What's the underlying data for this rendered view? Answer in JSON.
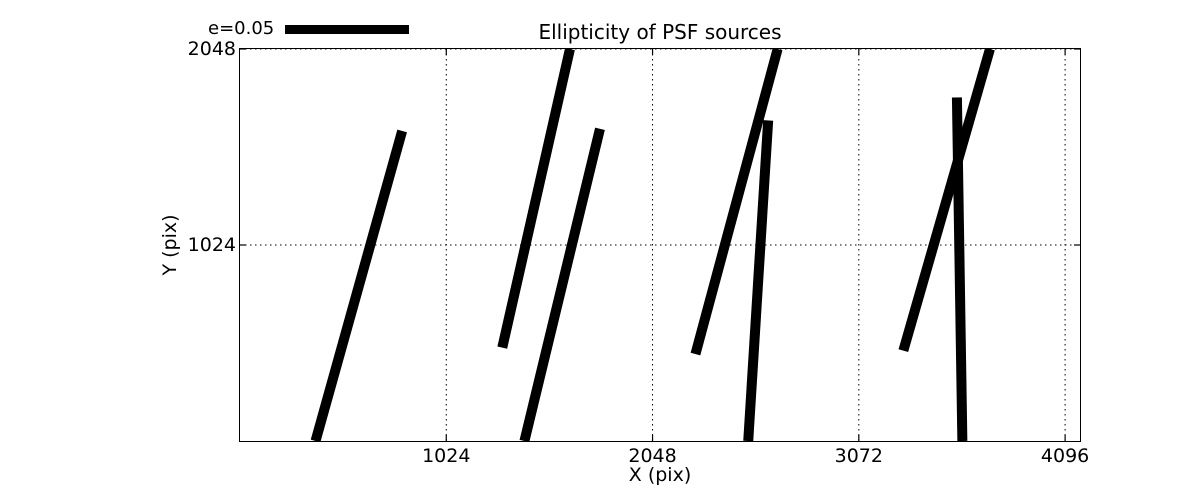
{
  "chart_data": {
    "type": "line",
    "subtype": "ellipticity-whisker-plot",
    "title": "Ellipticity of PSF sources",
    "xlabel": "X (pix)",
    "ylabel": "Y (pix)",
    "legend": {
      "label": "e=0.05",
      "swatch": "thick-black-line",
      "position": "upper-left-outside"
    },
    "axes": {
      "xlim": [
        0,
        4170
      ],
      "ylim": [
        0,
        2048
      ],
      "x_ticks": [
        {
          "value": 1024,
          "label": "1024"
        },
        {
          "value": 2048,
          "label": "2048"
        },
        {
          "value": 3072,
          "label": "3072"
        },
        {
          "value": 4096,
          "label": "4096"
        }
      ],
      "y_ticks": [
        {
          "value": 1024,
          "label": "1024"
        },
        {
          "value": 2048,
          "label": "2048"
        }
      ],
      "grid": "dotted"
    },
    "segments": [
      {
        "x1": 375,
        "y1": 0,
        "x2": 805,
        "y2": 1620
      },
      {
        "x1": 1302,
        "y1": 488,
        "x2": 1638,
        "y2": 2048
      },
      {
        "x1": 1412,
        "y1": 0,
        "x2": 1787,
        "y2": 1631
      },
      {
        "x1": 2261,
        "y1": 454,
        "x2": 2669,
        "y2": 2048
      },
      {
        "x1": 2523,
        "y1": 0,
        "x2": 2622,
        "y2": 1675
      },
      {
        "x1": 3293,
        "y1": 472,
        "x2": 3723,
        "y2": 2048
      },
      {
        "x1": 3586,
        "y1": 0,
        "x2": 3559,
        "y2": 1795
      }
    ]
  },
  "colors": {
    "foreground": "#000000",
    "background": "#ffffff"
  }
}
